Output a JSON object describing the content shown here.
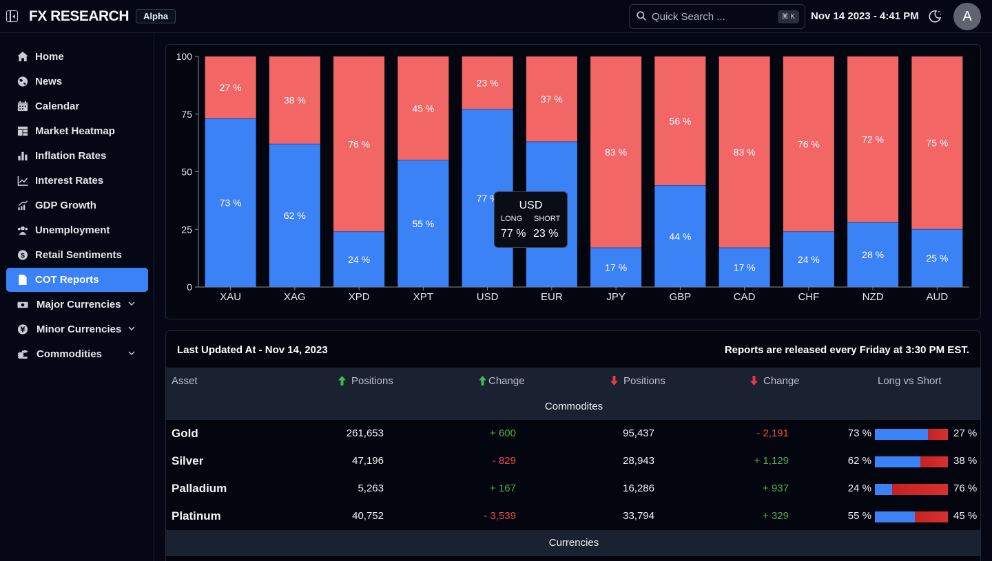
{
  "header": {
    "logo": "FX RESEARCH",
    "badge": "Alpha",
    "search_placeholder": "Quick Search ...",
    "search_shortcut": "⌘ K",
    "datetime": "Nov 14 2023 - 4:41 PM",
    "avatar_initial": "A"
  },
  "sidebar": {
    "items": [
      {
        "label": "Home",
        "icon": "home-icon"
      },
      {
        "label": "News",
        "icon": "globe-icon"
      },
      {
        "label": "Calendar",
        "icon": "calendar-icon"
      },
      {
        "label": "Market Heatmap",
        "icon": "heatmap-icon"
      },
      {
        "label": "Inflation Rates",
        "icon": "bar-chart-icon"
      },
      {
        "label": "Interest Rates",
        "icon": "line-chart-icon"
      },
      {
        "label": "GDP Growth",
        "icon": "growth-icon"
      },
      {
        "label": "Unemployment",
        "icon": "people-icon"
      },
      {
        "label": "Retail Sentiments",
        "icon": "dollar-icon"
      },
      {
        "label": "COT Reports",
        "icon": "document-icon"
      },
      {
        "label": "Major Currencies",
        "icon": "banknote-icon"
      },
      {
        "label": "Minor Currencies",
        "icon": "yen-icon"
      },
      {
        "label": "Commodities",
        "icon": "coins-icon"
      }
    ],
    "active": "COT Reports"
  },
  "chart_data": {
    "type": "bar",
    "stacked": true,
    "categories": [
      "XAU",
      "XAG",
      "XPD",
      "XPT",
      "USD",
      "EUR",
      "JPY",
      "GBP",
      "CAD",
      "CHF",
      "NZD",
      "AUD"
    ],
    "series": [
      {
        "name": "Long",
        "color": "#3b82f6",
        "values": [
          73,
          62,
          24,
          55,
          77,
          63,
          17,
          44,
          17,
          24,
          28,
          25
        ]
      },
      {
        "name": "Short",
        "color": "#f26666",
        "values": [
          27,
          38,
          76,
          45,
          23,
          37,
          83,
          56,
          83,
          76,
          72,
          75
        ]
      }
    ],
    "data_labels": {
      "long": [
        "73 %",
        "62 %",
        "24 %",
        "55 %",
        "77 %",
        "",
        "17 %",
        "44 %",
        "17 %",
        "24 %",
        "28 %",
        "25 %"
      ],
      "short": [
        "27 %",
        "38 %",
        "76 %",
        "45 %",
        "23 %",
        "37 %",
        "83 %",
        "56 %",
        "83 %",
        "76 %",
        "72 %",
        "75 %"
      ]
    },
    "yticks": [
      0,
      25,
      50,
      75,
      100
    ],
    "ylim": [
      0,
      100
    ],
    "grid": false,
    "tooltip": {
      "title": "USD",
      "long_label": "LONG",
      "short_label": "SHORT",
      "long_value": "77 %",
      "short_value": "23 %"
    }
  },
  "table": {
    "last_updated": "Last Updated At - Nov 14, 2023",
    "release_note": "Reports are released every Friday at 3:30 PM EST.",
    "columns": [
      "Asset",
      "Positions",
      "Change",
      "Positions",
      "Change",
      "Long vs Short"
    ],
    "groups": [
      "Commodites",
      "Currencies"
    ],
    "rows": [
      {
        "asset": "Gold",
        "long_positions": "261,653",
        "long_change": "+ 600",
        "short_positions": "95,437",
        "short_change": "- 2,191",
        "long_pct": "73 %",
        "short_pct": "27 %",
        "long_value": 73
      },
      {
        "asset": "Silver",
        "long_positions": "47,196",
        "long_change": "- 829",
        "short_positions": "28,943",
        "short_change": "+ 1,129",
        "long_pct": "62 %",
        "short_pct": "38 %",
        "long_value": 62
      },
      {
        "asset": "Palladium",
        "long_positions": "5,263",
        "long_change": "+ 167",
        "short_positions": "16,286",
        "short_change": "+ 937",
        "long_pct": "24 %",
        "short_pct": "76 %",
        "long_value": 24
      },
      {
        "asset": "Platinum",
        "long_positions": "40,752",
        "long_change": "- 3,539",
        "short_positions": "33,794",
        "short_change": "+ 329",
        "long_pct": "55 %",
        "short_pct": "45 %",
        "long_value": 55
      }
    ]
  }
}
